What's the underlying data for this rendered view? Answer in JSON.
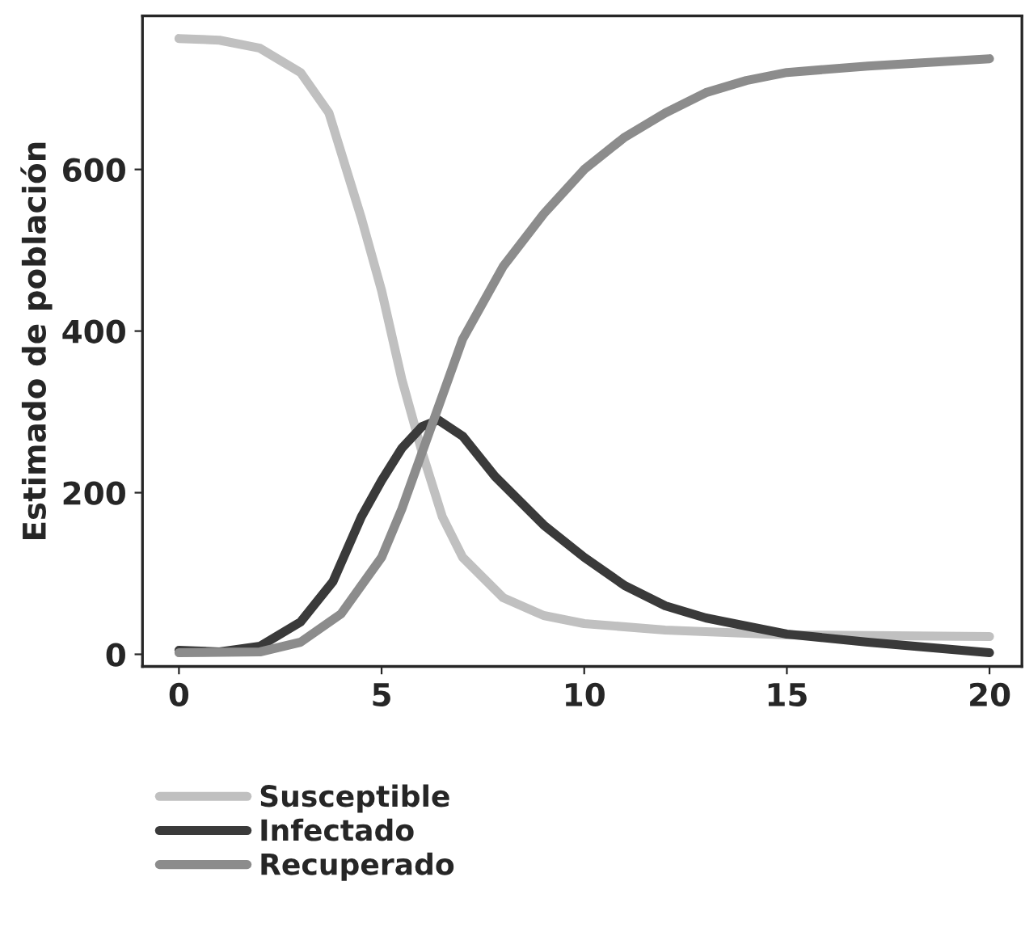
{
  "chart_data": {
    "type": "line",
    "ylabel": "Estimado de población",
    "xlim": [
      -0.9,
      20.8
    ],
    "ylim": [
      -15,
      790
    ],
    "xticks": [
      0,
      5,
      10,
      15,
      20
    ],
    "yticks": [
      0,
      200,
      400,
      600
    ],
    "grid": false,
    "legend": "bottom",
    "line_style": "solid",
    "marker": "none",
    "series": [
      {
        "name": "Susceptible",
        "color": "#c0c0c0",
        "x": [
          0,
          1,
          2,
          3,
          3.7,
          4.5,
          5,
          5.5,
          6,
          6.5,
          7,
          8,
          9,
          10,
          12,
          15,
          20
        ],
        "values": [
          762,
          760,
          750,
          720,
          670,
          540,
          450,
          340,
          250,
          170,
          120,
          70,
          48,
          38,
          30,
          24,
          22
        ]
      },
      {
        "name": "Infectado",
        "color": "#3a3a3a",
        "x": [
          0,
          1,
          2,
          3,
          3.8,
          4.5,
          5,
          5.5,
          6,
          6.4,
          7,
          7.8,
          9,
          10,
          11,
          12,
          13,
          15,
          17,
          20
        ],
        "values": [
          5,
          3,
          10,
          40,
          90,
          170,
          215,
          255,
          282,
          290,
          270,
          220,
          160,
          120,
          85,
          60,
          45,
          25,
          15,
          2
        ]
      },
      {
        "name": "Recuperado",
        "color": "#8c8c8c",
        "x": [
          0,
          2,
          3,
          4,
          5,
          5.5,
          6,
          6.5,
          7,
          8,
          9,
          10,
          11,
          12,
          13,
          14,
          15,
          17,
          20
        ],
        "values": [
          2,
          3,
          15,
          50,
          120,
          180,
          250,
          320,
          390,
          480,
          545,
          600,
          640,
          670,
          695,
          710,
          720,
          728,
          737
        ]
      }
    ]
  }
}
